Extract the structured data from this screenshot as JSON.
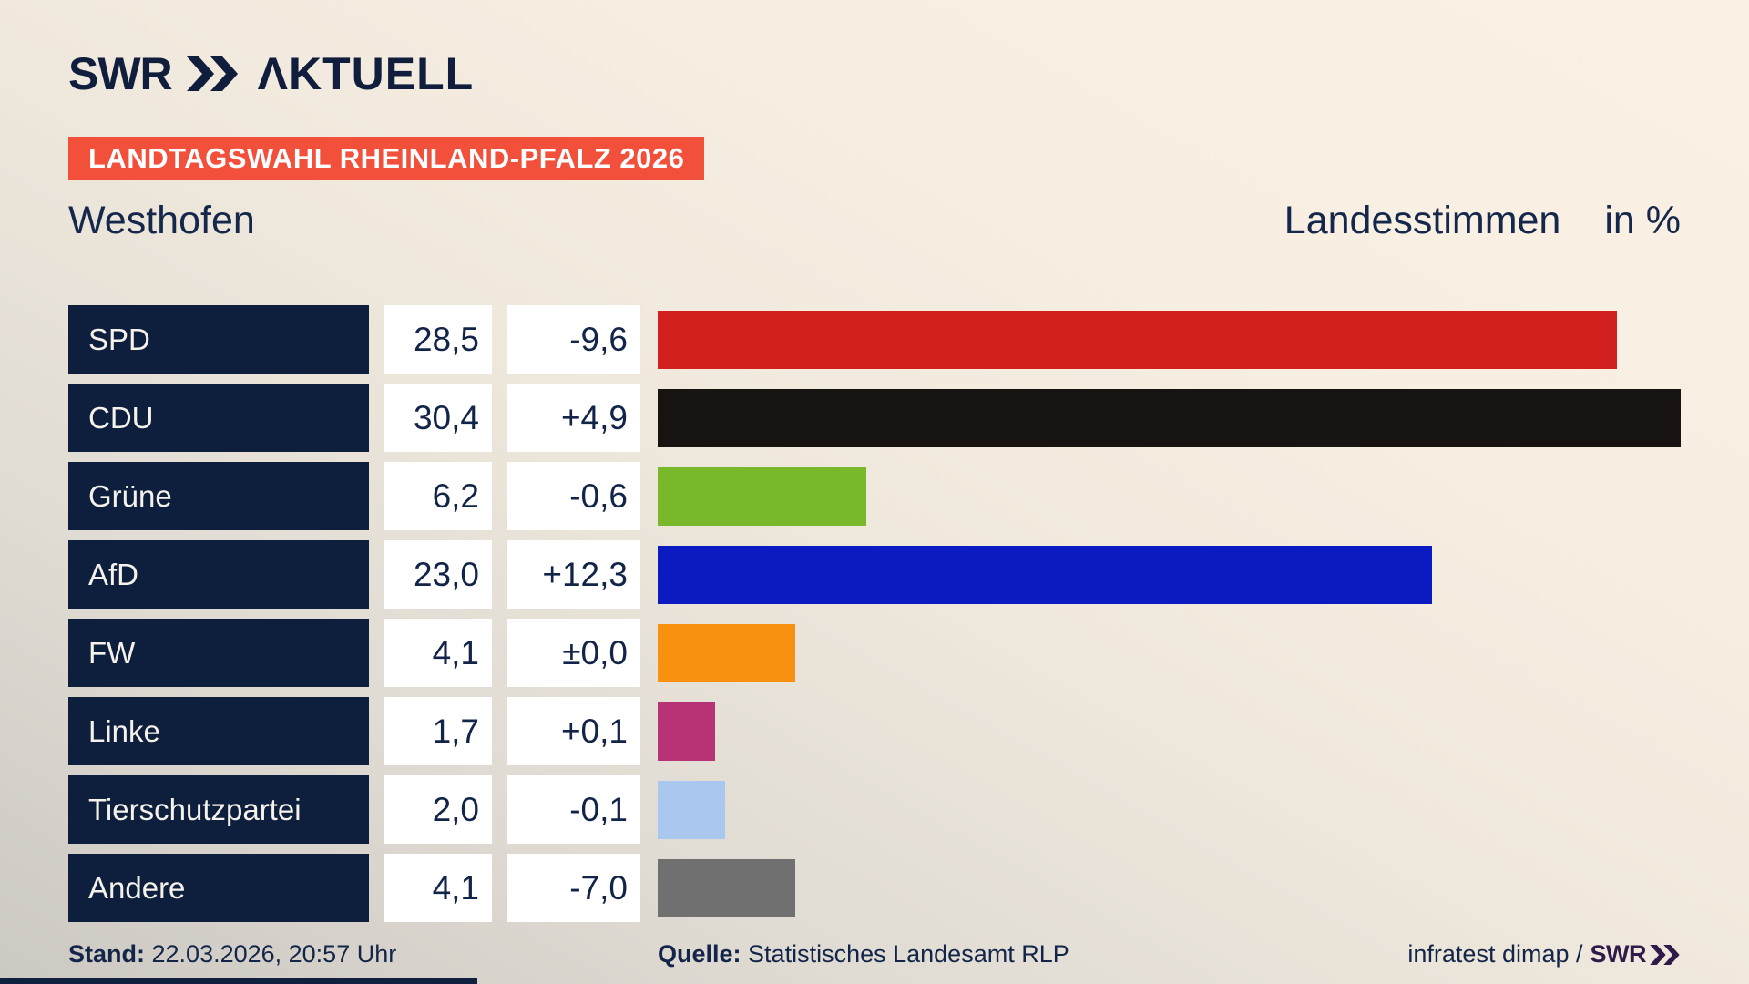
{
  "header": {
    "logo_brand": "SWR",
    "logo_suffix": "ΛKTUELL",
    "badge": "LANDTAGSWAHL RHEINLAND-PFALZ 2026"
  },
  "title": {
    "left": "Westhofen",
    "right": "Landesstimmen",
    "unit": "in %"
  },
  "chart_data": {
    "type": "bar",
    "orientation": "horizontal",
    "title": "Westhofen",
    "subtitle": "Landesstimmen in %",
    "categories": [
      "SPD",
      "CDU",
      "Grüne",
      "AfD",
      "FW",
      "Linke",
      "Tierschutzpartei",
      "Andere"
    ],
    "values": [
      28.5,
      30.4,
      6.2,
      23.0,
      4.1,
      1.7,
      2.0,
      4.1
    ],
    "changes": [
      -9.6,
      4.9,
      -0.6,
      12.3,
      0.0,
      0.1,
      -0.1,
      -7.0
    ],
    "bar_colors": [
      "#d2201f",
      "#161310",
      "#78b82a",
      "#0b1ac1",
      "#f8910f",
      "#b63376",
      "#a9c7ef",
      "#707070"
    ],
    "xmax": 30.4,
    "value_suffix": "%",
    "legend": "none",
    "grid": "off"
  },
  "rows": [
    {
      "party": "SPD",
      "value": "28,5",
      "change": "-9,6",
      "value_num": 28.5,
      "color": "#d2201f"
    },
    {
      "party": "CDU",
      "value": "30,4",
      "change": "+4,9",
      "value_num": 30.4,
      "color": "#161310"
    },
    {
      "party": "Grüne",
      "value": "6,2",
      "change": "-0,6",
      "value_num": 6.2,
      "color": "#78b82a"
    },
    {
      "party": "AfD",
      "value": "23,0",
      "change": "+12,3",
      "value_num": 23.0,
      "color": "#0b1ac1"
    },
    {
      "party": "FW",
      "value": "4,1",
      "change": "±0,0",
      "value_num": 4.1,
      "color": "#f8910f"
    },
    {
      "party": "Linke",
      "value": "1,7",
      "change": "+0,1",
      "value_num": 1.7,
      "color": "#b63376"
    },
    {
      "party": "Tierschutzpartei",
      "value": "2,0",
      "change": "-0,1",
      "value_num": 2.0,
      "color": "#a9c7ef"
    },
    {
      "party": "Andere",
      "value": "4,1",
      "change": "-7,0",
      "value_num": 4.1,
      "color": "#707070"
    }
  ],
  "footer": {
    "stand_label": "Stand:",
    "stand_value": "22.03.2026, 20:57 Uhr",
    "quelle_label": "Quelle:",
    "quelle_value": "Statistisches Landesamt RLP",
    "credit_text": "infratest dimap /",
    "credit_brand": "SWR"
  },
  "colors": {
    "navy_cell": "#0e1f3d",
    "badge_red": "#f3503c",
    "text_navy": "#14284a",
    "credit_purple": "#301a4a",
    "background_light": "#faf1e4",
    "background_dark": "#ccc8c2"
  }
}
